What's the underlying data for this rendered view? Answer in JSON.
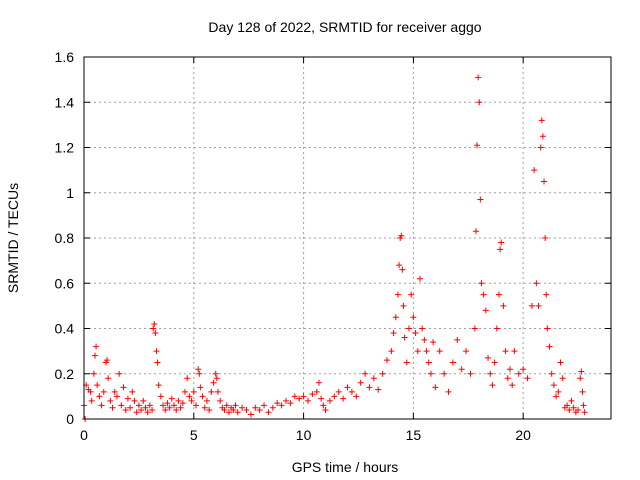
{
  "chart_data": {
    "type": "scatter",
    "title": "Day 128 of 2022, SRMTID for receiver aggo",
    "xlabel": "GPS time / hours",
    "ylabel": "SRMTID / TECUs",
    "xlim": [
      0,
      24
    ],
    "ylim": [
      0,
      1.6
    ],
    "xticks": [
      0,
      5,
      10,
      15,
      20
    ],
    "xtick_labels": [
      "0",
      "5",
      "10",
      "15",
      "20"
    ],
    "yticks": [
      0,
      0.2,
      0.4,
      0.6,
      0.8,
      1,
      1.2,
      1.4,
      1.6
    ],
    "ytick_labels": [
      "0",
      "0.2",
      "0.4",
      "0.6",
      "0.8",
      "1",
      "1.2",
      "1.4",
      "1.6"
    ],
    "grid": true,
    "marker": "+",
    "color": "#ff0000",
    "series": [
      {
        "name": "aggo",
        "points": [
          [
            0.0,
            0.06
          ],
          [
            0.05,
            0.0
          ],
          [
            0.1,
            0.15
          ],
          [
            0.2,
            0.13
          ],
          [
            0.3,
            0.12
          ],
          [
            0.35,
            0.08
          ],
          [
            0.45,
            0.2
          ],
          [
            0.5,
            0.28
          ],
          [
            0.55,
            0.32
          ],
          [
            0.6,
            0.15
          ],
          [
            0.7,
            0.1
          ],
          [
            0.8,
            0.06
          ],
          [
            0.9,
            0.12
          ],
          [
            1.0,
            0.25
          ],
          [
            1.05,
            0.26
          ],
          [
            1.1,
            0.18
          ],
          [
            1.2,
            0.08
          ],
          [
            1.3,
            0.05
          ],
          [
            1.4,
            0.12
          ],
          [
            1.5,
            0.1
          ],
          [
            1.6,
            0.2
          ],
          [
            1.7,
            0.06
          ],
          [
            1.8,
            0.14
          ],
          [
            1.9,
            0.04
          ],
          [
            2.0,
            0.09
          ],
          [
            2.1,
            0.05
          ],
          [
            2.2,
            0.12
          ],
          [
            2.3,
            0.08
          ],
          [
            2.4,
            0.03
          ],
          [
            2.5,
            0.06
          ],
          [
            2.6,
            0.04
          ],
          [
            2.7,
            0.08
          ],
          [
            2.8,
            0.05
          ],
          [
            2.9,
            0.03
          ],
          [
            3.0,
            0.06
          ],
          [
            3.1,
            0.04
          ],
          [
            3.15,
            0.4
          ],
          [
            3.2,
            0.42
          ],
          [
            3.25,
            0.38
          ],
          [
            3.3,
            0.3
          ],
          [
            3.35,
            0.25
          ],
          [
            3.4,
            0.15
          ],
          [
            3.5,
            0.1
          ],
          [
            3.6,
            0.06
          ],
          [
            3.7,
            0.04
          ],
          [
            3.8,
            0.07
          ],
          [
            3.9,
            0.05
          ],
          [
            4.0,
            0.09
          ],
          [
            4.1,
            0.06
          ],
          [
            4.2,
            0.04
          ],
          [
            4.3,
            0.08
          ],
          [
            4.4,
            0.05
          ],
          [
            4.5,
            0.07
          ],
          [
            4.6,
            0.12
          ],
          [
            4.7,
            0.18
          ],
          [
            4.8,
            0.1
          ],
          [
            4.9,
            0.08
          ],
          [
            5.0,
            0.12
          ],
          [
            5.1,
            0.06
          ],
          [
            5.2,
            0.22
          ],
          [
            5.25,
            0.2
          ],
          [
            5.3,
            0.14
          ],
          [
            5.4,
            0.1
          ],
          [
            5.5,
            0.05
          ],
          [
            5.6,
            0.08
          ],
          [
            5.7,
            0.04
          ],
          [
            5.8,
            0.12
          ],
          [
            5.9,
            0.16
          ],
          [
            6.0,
            0.2
          ],
          [
            6.05,
            0.18
          ],
          [
            6.1,
            0.12
          ],
          [
            6.2,
            0.08
          ],
          [
            6.3,
            0.05
          ],
          [
            6.4,
            0.04
          ],
          [
            6.5,
            0.06
          ],
          [
            6.6,
            0.03
          ],
          [
            6.7,
            0.05
          ],
          [
            6.8,
            0.04
          ],
          [
            6.9,
            0.06
          ],
          [
            7.0,
            0.03
          ],
          [
            7.2,
            0.05
          ],
          [
            7.4,
            0.04
          ],
          [
            7.6,
            0.02
          ],
          [
            7.8,
            0.05
          ],
          [
            8.0,
            0.04
          ],
          [
            8.2,
            0.06
          ],
          [
            8.4,
            0.03
          ],
          [
            8.6,
            0.05
          ],
          [
            8.8,
            0.07
          ],
          [
            9.0,
            0.06
          ],
          [
            9.2,
            0.08
          ],
          [
            9.4,
            0.07
          ],
          [
            9.6,
            0.1
          ],
          [
            9.8,
            0.09
          ],
          [
            10.0,
            0.1
          ],
          [
            10.2,
            0.08
          ],
          [
            10.4,
            0.11
          ],
          [
            10.6,
            0.12
          ],
          [
            10.7,
            0.16
          ],
          [
            10.8,
            0.09
          ],
          [
            10.9,
            0.06
          ],
          [
            11.0,
            0.04
          ],
          [
            11.2,
            0.08
          ],
          [
            11.4,
            0.1
          ],
          [
            11.6,
            0.12
          ],
          [
            11.8,
            0.09
          ],
          [
            12.0,
            0.14
          ],
          [
            12.2,
            0.12
          ],
          [
            12.4,
            0.1
          ],
          [
            12.6,
            0.16
          ],
          [
            12.8,
            0.2
          ],
          [
            13.0,
            0.14
          ],
          [
            13.2,
            0.18
          ],
          [
            13.4,
            0.13
          ],
          [
            13.6,
            0.2
          ],
          [
            13.8,
            0.26
          ],
          [
            14.0,
            0.3
          ],
          [
            14.1,
            0.38
          ],
          [
            14.2,
            0.45
          ],
          [
            14.3,
            0.55
          ],
          [
            14.35,
            0.68
          ],
          [
            14.4,
            0.8
          ],
          [
            14.45,
            0.81
          ],
          [
            14.5,
            0.66
          ],
          [
            14.55,
            0.5
          ],
          [
            14.6,
            0.36
          ],
          [
            14.7,
            0.25
          ],
          [
            14.8,
            0.4
          ],
          [
            14.9,
            0.55
          ],
          [
            15.0,
            0.45
          ],
          [
            15.1,
            0.38
          ],
          [
            15.2,
            0.3
          ],
          [
            15.3,
            0.62
          ],
          [
            15.4,
            0.4
          ],
          [
            15.5,
            0.35
          ],
          [
            15.6,
            0.3
          ],
          [
            15.7,
            0.25
          ],
          [
            15.8,
            0.2
          ],
          [
            15.9,
            0.34
          ],
          [
            16.0,
            0.14
          ],
          [
            16.2,
            0.3
          ],
          [
            16.4,
            0.2
          ],
          [
            16.6,
            0.12
          ],
          [
            16.8,
            0.25
          ],
          [
            17.0,
            0.35
          ],
          [
            17.2,
            0.22
          ],
          [
            17.4,
            0.3
          ],
          [
            17.6,
            0.2
          ],
          [
            17.8,
            0.4
          ],
          [
            17.85,
            0.83
          ],
          [
            17.9,
            1.21
          ],
          [
            17.95,
            1.51
          ],
          [
            18.0,
            1.4
          ],
          [
            18.05,
            0.97
          ],
          [
            18.1,
            0.6
          ],
          [
            18.2,
            0.55
          ],
          [
            18.3,
            0.48
          ],
          [
            18.4,
            0.27
          ],
          [
            18.5,
            0.2
          ],
          [
            18.6,
            0.15
          ],
          [
            18.7,
            0.25
          ],
          [
            18.8,
            0.4
          ],
          [
            18.9,
            0.55
          ],
          [
            18.95,
            0.75
          ],
          [
            19.0,
            0.78
          ],
          [
            19.1,
            0.5
          ],
          [
            19.2,
            0.3
          ],
          [
            19.3,
            0.18
          ],
          [
            19.4,
            0.22
          ],
          [
            19.5,
            0.15
          ],
          [
            19.6,
            0.3
          ],
          [
            19.8,
            0.2
          ],
          [
            20.0,
            0.22
          ],
          [
            20.2,
            0.18
          ],
          [
            20.4,
            0.5
          ],
          [
            20.5,
            1.1
          ],
          [
            20.6,
            0.6
          ],
          [
            20.7,
            0.5
          ],
          [
            20.8,
            1.2
          ],
          [
            20.85,
            1.32
          ],
          [
            20.9,
            1.25
          ],
          [
            20.95,
            1.05
          ],
          [
            21.0,
            0.8
          ],
          [
            21.05,
            0.55
          ],
          [
            21.1,
            0.4
          ],
          [
            21.2,
            0.32
          ],
          [
            21.3,
            0.2
          ],
          [
            21.4,
            0.15
          ],
          [
            21.5,
            0.1
          ],
          [
            21.6,
            0.12
          ],
          [
            21.7,
            0.25
          ],
          [
            21.8,
            0.18
          ],
          [
            21.9,
            0.05
          ],
          [
            22.0,
            0.06
          ],
          [
            22.1,
            0.04
          ],
          [
            22.2,
            0.08
          ],
          [
            22.3,
            0.05
          ],
          [
            22.4,
            0.03
          ],
          [
            22.5,
            0.04
          ],
          [
            22.6,
            0.18
          ],
          [
            22.65,
            0.21
          ],
          [
            22.7,
            0.12
          ],
          [
            22.75,
            0.06
          ],
          [
            22.8,
            0.03
          ]
        ]
      }
    ]
  }
}
